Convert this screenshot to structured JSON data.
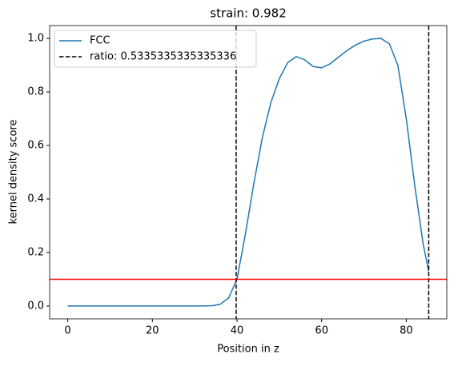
{
  "chart_data": {
    "type": "line",
    "title": "strain: 0.982",
    "xlabel": "Position in z",
    "ylabel": "kernel density score",
    "xlim": [
      -4.27,
      89.57
    ],
    "ylim": [
      -0.048,
      1.048
    ],
    "xticks": [
      0,
      20,
      40,
      60,
      80
    ],
    "yticks": [
      {
        "value": 0,
        "label": "0.0"
      },
      0.2,
      0.4,
      0.6,
      0.8,
      {
        "value": 1,
        "label": "1.0"
      }
    ],
    "grid": false,
    "legend": "upper left",
    "series": [
      {
        "name": "FCC",
        "color": "#1f77b4",
        "x": [
          0,
          5,
          10,
          15,
          20,
          25,
          30,
          34,
          36,
          38,
          40,
          42,
          44,
          46,
          48,
          50,
          52,
          54,
          56,
          58,
          60,
          62,
          64,
          66,
          68,
          70,
          72,
          74,
          76,
          78,
          80,
          82,
          84,
          85.3
        ],
        "values": [
          0,
          0,
          0,
          0,
          0,
          0,
          0,
          0.001,
          0.006,
          0.03,
          0.1,
          0.27,
          0.46,
          0.63,
          0.76,
          0.85,
          0.91,
          0.932,
          0.92,
          0.895,
          0.89,
          0.905,
          0.93,
          0.955,
          0.975,
          0.99,
          0.998,
          1.0,
          0.98,
          0.9,
          0.7,
          0.45,
          0.23,
          0.13
        ]
      }
    ],
    "vlines": {
      "name": "ratio: 0.5335335335335336",
      "color": "#000000",
      "values": [
        39.8,
        85.3
      ]
    },
    "hline": {
      "value": 0.1,
      "color": "#ff0000"
    }
  }
}
